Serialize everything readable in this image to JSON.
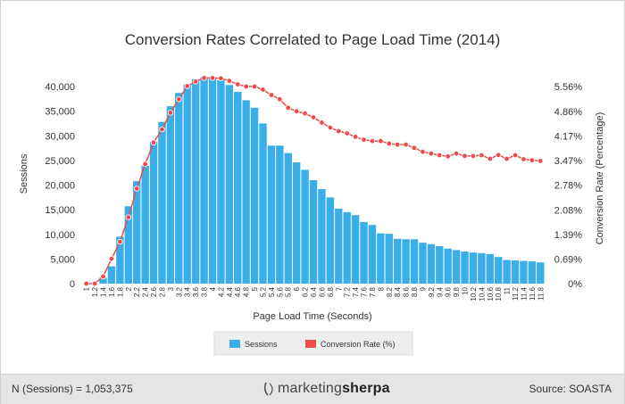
{
  "chart_data": {
    "type": "bar",
    "title": "Conversion Rates Correlated to Page Load Time (2014)",
    "xlabel": "Page Load Time (Seconds)",
    "ylabel": "Sessions",
    "y2label": "Conversion Rate (Percentage)",
    "categories": [
      "1",
      "1.2",
      "1.4",
      "1.6",
      "1.8",
      "2",
      "2.2",
      "2.4",
      "2.6",
      "2.8",
      "3",
      "3.2",
      "3.4",
      "3.6",
      "3.8",
      "4",
      "4.2",
      "4.4",
      "4.6",
      "4.8",
      "5",
      "5.2",
      "5.4",
      "5.6",
      "5.8",
      "6",
      "6.2",
      "6.4",
      "6.6",
      "6.8",
      "7",
      "7.2",
      "7.4",
      "7.6",
      "7.8",
      "8",
      "8.2",
      "8.4",
      "8.6",
      "8.8",
      "9",
      "9.2",
      "9.4",
      "9.6",
      "9.8",
      "10",
      "10.2",
      "10.4",
      "10.6",
      "10.8",
      "11",
      "11.2",
      "11.4",
      "11.6",
      "11.8"
    ],
    "x_tick_labels": [
      "1",
      "1.2",
      "1.4",
      "1.6",
      "1.8",
      "2",
      "2.2",
      "2.4",
      "2.6",
      "2.8",
      "3",
      "3.2",
      "3.4",
      "3.6",
      "3.8",
      "4",
      "4.2",
      "4.4",
      "4.6",
      "4.8",
      "5",
      "5.2",
      "5.4",
      "5.6",
      "5.8",
      "6",
      "6.2",
      "6.4",
      "6.6",
      "6.8",
      "7",
      "7.2",
      "7.4",
      "7.6",
      "7.8",
      "8",
      "8.2",
      "8.4",
      "8.6",
      "8.8",
      "9",
      "9.2",
      "9.4",
      "9.6",
      "9.8",
      "10",
      "10.2",
      "10.4",
      "10.6",
      "10.8",
      "11",
      "11.2",
      "11.4",
      "11.6",
      "11.8"
    ],
    "y_ticks": [
      "0",
      "5,000",
      "10,000",
      "15,000",
      "20,000",
      "25,000",
      "30,000",
      "35,000",
      "40,000"
    ],
    "y_tick_values": [
      0,
      5000,
      10000,
      15000,
      20000,
      25000,
      30000,
      35000,
      40000
    ],
    "y2_ticks": [
      "0%",
      "0.69%",
      "1.39%",
      "2.08%",
      "2.78%",
      "3.47%",
      "4.17%",
      "4.86%",
      "5.56%"
    ],
    "y2_tick_values": [
      0,
      0.69,
      1.39,
      2.08,
      2.78,
      3.47,
      4.17,
      4.86,
      5.56
    ],
    "ylim": [
      0,
      40000
    ],
    "y2lim": [
      0,
      5.56
    ],
    "grid": false,
    "legend_position": "bottom",
    "series": [
      {
        "name": "Sessions",
        "type": "bar",
        "color": "#3aaee8",
        "values": [
          0,
          0,
          1200,
          3500,
          9500,
          15700,
          20800,
          23900,
          28800,
          32800,
          36000,
          38700,
          40400,
          41500,
          41900,
          41900,
          41300,
          40300,
          38900,
          37200,
          35700,
          32500,
          28000,
          28000,
          26500,
          24600,
          23100,
          21000,
          19200,
          17500,
          15200,
          14500,
          13900,
          12500,
          11900,
          10200,
          10100,
          9100,
          9000,
          9000,
          8300,
          8000,
          7600,
          7100,
          6800,
          6500,
          6300,
          6200,
          6000,
          5400,
          4800,
          4700,
          4600,
          4500,
          4300
        ]
      },
      {
        "name": "Conversion Rate (%)",
        "type": "line",
        "color": "#ee4b4b",
        "values": [
          0,
          0,
          0.2,
          0.7,
          1.18,
          1.87,
          2.68,
          3.37,
          3.98,
          4.35,
          4.82,
          5.2,
          5.57,
          5.7,
          5.8,
          5.8,
          5.79,
          5.72,
          5.62,
          5.56,
          5.56,
          5.47,
          5.32,
          5.2,
          4.96,
          4.86,
          4.8,
          4.69,
          4.54,
          4.4,
          4.3,
          4.24,
          4.14,
          4.06,
          4.02,
          4.02,
          3.95,
          3.92,
          3.92,
          3.83,
          3.72,
          3.67,
          3.62,
          3.59,
          3.67,
          3.6,
          3.6,
          3.62,
          3.52,
          3.63,
          3.52,
          3.62,
          3.51,
          3.48,
          3.46
        ]
      }
    ]
  },
  "footer": {
    "n_sessions": "N (Sessions) = 1,053,375",
    "brand_part1": "marketing",
    "brand_part2": "sherpa",
    "source": "Source:  SOASTA"
  }
}
